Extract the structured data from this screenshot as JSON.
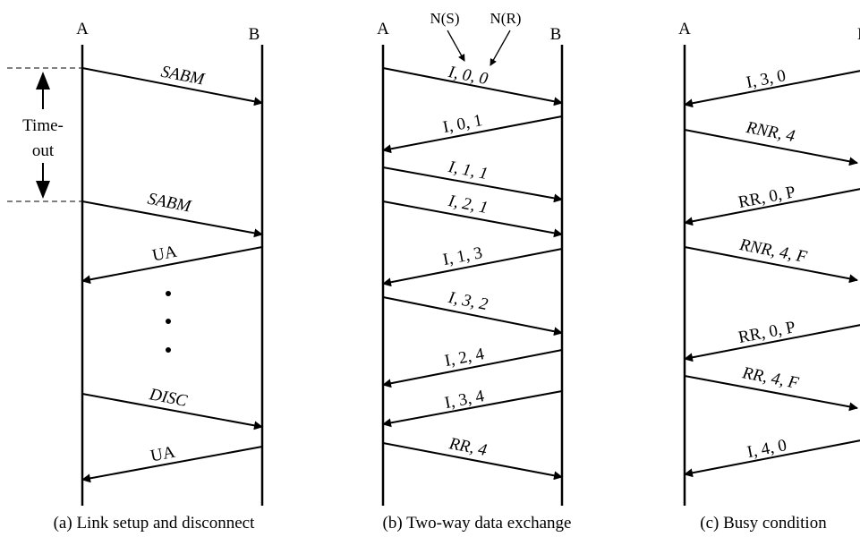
{
  "panels": [
    {
      "caption": "(a) Link setup and disconnect",
      "station_a": "A",
      "station_b": "B",
      "timeout_label": [
        "Time-",
        "out"
      ],
      "messages": [
        {
          "label": "SABM",
          "direction": "A→B"
        },
        {
          "label": "SABM",
          "direction": "A→B"
        },
        {
          "label": "UA",
          "direction": "B→A"
        },
        {
          "label": "DISC",
          "direction": "A→B"
        },
        {
          "label": "UA",
          "direction": "B→A"
        }
      ]
    },
    {
      "caption": "(b) Two-way data exchange",
      "station_a": "A",
      "station_b": "B",
      "field_labels": [
        "N(S)",
        "N(R)"
      ],
      "messages": [
        {
          "label": "I, 0, 0",
          "direction": "A→B"
        },
        {
          "label": "I, 0, 1",
          "direction": "B→A"
        },
        {
          "label": "I, 1, 1",
          "direction": "A→B"
        },
        {
          "label": "I, 2, 1",
          "direction": "A→B"
        },
        {
          "label": "I, 1, 3",
          "direction": "B→A"
        },
        {
          "label": "I, 3, 2",
          "direction": "A→B"
        },
        {
          "label": "I, 2, 4",
          "direction": "B→A"
        },
        {
          "label": "I, 3, 4",
          "direction": "B→A"
        },
        {
          "label": "RR, 4",
          "direction": "A→B"
        }
      ]
    },
    {
      "caption": "(c) Busy condition",
      "station_a": "A",
      "station_b": "B",
      "messages": [
        {
          "label": "I, 3, 0",
          "direction": "B→A"
        },
        {
          "label": "RNR, 4",
          "direction": "A→B"
        },
        {
          "label": "RR, 0, P",
          "direction": "B→A"
        },
        {
          "label": "RNR, 4, F",
          "direction": "A→B"
        },
        {
          "label": "RR, 0, P",
          "direction": "B→A"
        },
        {
          "label": "RR, 4, F",
          "direction": "A→B"
        },
        {
          "label": "I, 4, 0",
          "direction": "B→A"
        }
      ]
    }
  ]
}
